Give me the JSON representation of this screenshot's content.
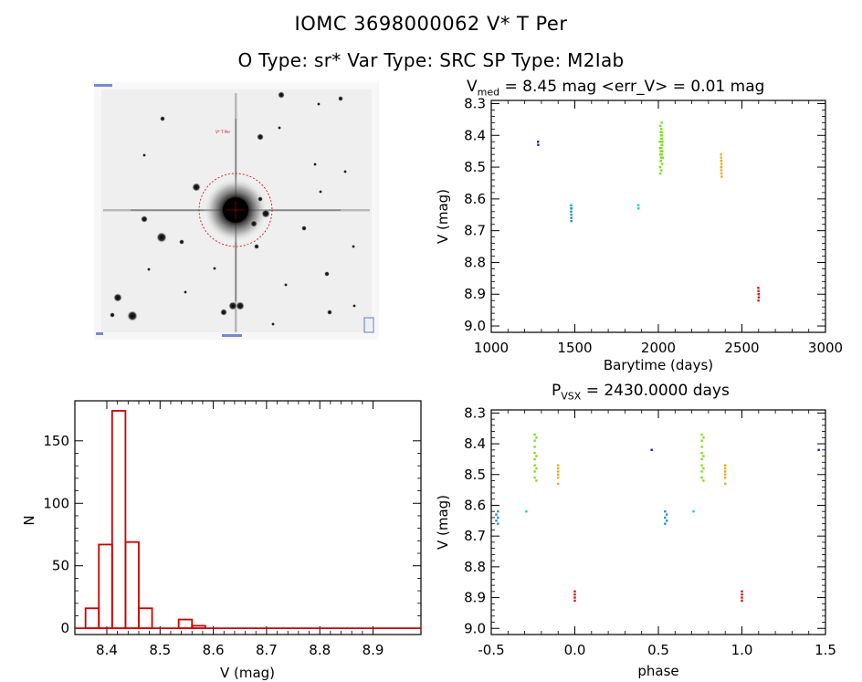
{
  "header": {
    "line1": "IOMC 3698000062    V* T Per",
    "line2": "O Type: sr*   Var Type: SRC   SP Type: M2Iab"
  },
  "image_panel": {
    "kind": "sky-finding-chart",
    "marker_label": "V* T Per",
    "circle_color": "#cc0000"
  },
  "colors": {
    "hist": "#cc0000",
    "purple": "#4b0a9a",
    "blue": "#1e8fd0",
    "cyan": "#14d4c8",
    "green": "#7ae01a",
    "orange": "#f0a818",
    "red": "#d01a1a"
  },
  "chart_data": [
    {
      "id": "lightcurve",
      "type": "scatter",
      "title_prefix": "V",
      "title_sub": "med",
      "title_rest": " = 8.45 mag <err_V> = 0.01 mag",
      "xlabel": "Barytime (days)",
      "ylabel": "V (mag)",
      "xlim": [
        1000,
        3000
      ],
      "ylim": [
        9.02,
        8.29
      ],
      "y_inverted": true,
      "xticks": [
        1000,
        1500,
        2000,
        2500,
        3000
      ],
      "yticks": [
        8.3,
        8.4,
        8.5,
        8.6,
        8.7,
        8.8,
        8.9,
        9.0
      ],
      "series": [
        {
          "color_key": "purple",
          "x": [
            1280,
            1281
          ],
          "y": [
            8.42,
            8.43
          ]
        },
        {
          "color_key": "blue",
          "x": [
            1478,
            1478,
            1478,
            1479,
            1479,
            1479,
            1480
          ],
          "y": [
            8.62,
            8.63,
            8.64,
            8.65,
            8.66,
            8.67,
            8.63
          ]
        },
        {
          "color_key": "cyan",
          "x": [
            1880,
            1881
          ],
          "y": [
            8.62,
            8.63
          ]
        },
        {
          "color_key": "green",
          "x": [
            2008,
            2010,
            2012,
            2014,
            2016,
            2018,
            2020,
            2022,
            2024,
            2026,
            2010,
            2012,
            2014,
            2016,
            2018,
            2020,
            2022,
            2024,
            2012,
            2014,
            2016,
            2018,
            2020,
            2022,
            2014,
            2016,
            2018,
            2020,
            2016,
            2018,
            2020,
            2022
          ],
          "y": [
            8.42,
            8.44,
            8.46,
            8.48,
            8.4,
            8.38,
            8.36,
            8.43,
            8.45,
            8.47,
            8.5,
            8.52,
            8.39,
            8.41,
            8.44,
            8.46,
            8.49,
            8.42,
            8.37,
            8.45,
            8.48,
            8.51,
            8.4,
            8.43,
            8.44,
            8.46,
            8.42,
            8.39,
            8.47,
            8.45,
            8.43,
            8.41
          ]
        },
        {
          "color_key": "orange",
          "x": [
            2375,
            2376,
            2377,
            2378,
            2376,
            2377,
            2378,
            2379,
            2376,
            2377
          ],
          "y": [
            8.46,
            8.47,
            8.48,
            8.49,
            8.5,
            8.51,
            8.52,
            8.53,
            8.48,
            8.5
          ]
        },
        {
          "color_key": "red",
          "x": [
            2598,
            2599,
            2600,
            2601,
            2599,
            2600
          ],
          "y": [
            8.88,
            8.89,
            8.9,
            8.91,
            8.92,
            8.9
          ]
        }
      ]
    },
    {
      "id": "histogram",
      "type": "bar",
      "xlabel": "V (mag)",
      "ylabel": "N",
      "xlim": [
        8.34,
        8.99
      ],
      "ylim": [
        -5,
        182
      ],
      "xticks": [
        8.4,
        8.5,
        8.6,
        8.7,
        8.8,
        8.9
      ],
      "yticks": [
        0,
        50,
        100,
        150
      ],
      "bin_width": 0.025,
      "bins": [
        {
          "x0": 8.36,
          "count": 16
        },
        {
          "x0": 8.385,
          "count": 67
        },
        {
          "x0": 8.41,
          "count": 174
        },
        {
          "x0": 8.435,
          "count": 69
        },
        {
          "x0": 8.46,
          "count": 16
        },
        {
          "x0": 8.485,
          "count": 0
        },
        {
          "x0": 8.51,
          "count": 0
        },
        {
          "x0": 8.535,
          "count": 7
        },
        {
          "x0": 8.56,
          "count": 2
        },
        {
          "x0": 8.585,
          "count": 0
        },
        {
          "x0": 8.61,
          "count": 0
        },
        {
          "x0": 8.635,
          "count": 0
        },
        {
          "x0": 8.66,
          "count": 0
        },
        {
          "x0": 8.685,
          "count": 0
        },
        {
          "x0": 8.71,
          "count": 0
        },
        {
          "x0": 8.735,
          "count": 0
        },
        {
          "x0": 8.76,
          "count": 0
        },
        {
          "x0": 8.785,
          "count": 0
        },
        {
          "x0": 8.81,
          "count": 0
        },
        {
          "x0": 8.835,
          "count": 0
        },
        {
          "x0": 8.86,
          "count": 0
        },
        {
          "x0": 8.885,
          "count": 0
        },
        {
          "x0": 8.91,
          "count": 0
        }
      ]
    },
    {
      "id": "phased",
      "type": "scatter",
      "title_prefix": "P",
      "title_sub": "VSX",
      "title_rest": " = 2430.0000 days",
      "xlabel": "phase",
      "ylabel": "V (mag)",
      "xlim": [
        -0.5,
        1.5
      ],
      "ylim": [
        9.02,
        8.29
      ],
      "y_inverted": true,
      "xticks": [
        -0.5,
        0.0,
        0.5,
        1.0,
        1.5
      ],
      "yticks": [
        8.3,
        8.4,
        8.5,
        8.6,
        8.7,
        8.8,
        8.9,
        9.0
      ],
      "series": [
        {
          "color_key": "purple",
          "x": [
            0.46,
            1.46
          ],
          "y": [
            8.42,
            8.42
          ]
        },
        {
          "color_key": "blue",
          "x": [
            -0.46,
            -0.46,
            -0.46,
            -0.47,
            -0.47,
            0.54,
            0.54,
            0.54,
            0.55,
            0.55
          ],
          "y": [
            8.62,
            8.64,
            8.66,
            8.63,
            8.65,
            8.62,
            8.64,
            8.66,
            8.63,
            8.65
          ]
        },
        {
          "color_key": "cyan",
          "x": [
            -0.29,
            0.71
          ],
          "y": [
            8.62,
            8.62
          ]
        },
        {
          "color_key": "green",
          "x": [
            -0.24,
            -0.24,
            -0.24,
            -0.24,
            -0.24,
            -0.24,
            -0.24,
            -0.24,
            -0.23,
            -0.23,
            -0.23,
            -0.23,
            0.76,
            0.76,
            0.76,
            0.76,
            0.76,
            0.76,
            0.76,
            0.76,
            0.77,
            0.77,
            0.77,
            0.77
          ],
          "y": [
            8.37,
            8.39,
            8.41,
            8.43,
            8.45,
            8.47,
            8.49,
            8.51,
            8.38,
            8.44,
            8.48,
            8.52,
            8.37,
            8.39,
            8.41,
            8.43,
            8.45,
            8.47,
            8.49,
            8.51,
            8.38,
            8.44,
            8.48,
            8.52
          ]
        },
        {
          "color_key": "orange",
          "x": [
            -0.1,
            -0.1,
            -0.1,
            -0.1,
            -0.1,
            -0.1,
            0.9,
            0.9,
            0.9,
            0.9,
            0.9,
            0.9
          ],
          "y": [
            8.47,
            8.48,
            8.49,
            8.5,
            8.51,
            8.53,
            8.47,
            8.48,
            8.49,
            8.5,
            8.51,
            8.53
          ]
        },
        {
          "color_key": "red",
          "x": [
            0.0,
            0.0,
            0.0,
            0.0,
            1.0,
            1.0,
            1.0,
            1.0
          ],
          "y": [
            8.88,
            8.89,
            8.9,
            8.91,
            8.88,
            8.89,
            8.9,
            8.91
          ]
        }
      ]
    }
  ]
}
